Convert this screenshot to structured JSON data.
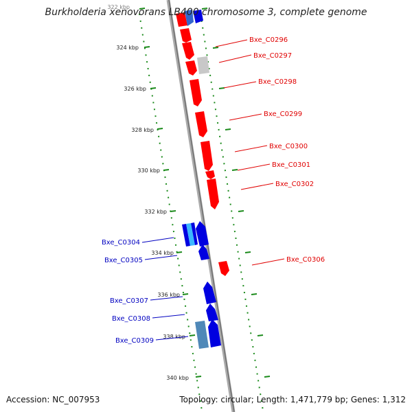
{
  "title": "Burkholderia xenovorans LB400 chromosome 3, complete genome",
  "footer": {
    "accession": "Accession: NC_007953",
    "summary": "Topology: circular; Length: 1,471,779 bp; Genes: 1,312"
  },
  "colors": {
    "forward_strand": "#ff0000",
    "reverse_strand": "#0000e0",
    "light_blue_gene": "#3bb8ff",
    "steel_gene": "#4f88b8",
    "gray_gene": "#c8c8c8",
    "ticks": "#1a8a1a",
    "backbone": "#909090"
  },
  "ticks": [
    "322 kbp",
    "324 kbp",
    "326 kbp",
    "328 kbp",
    "330 kbp",
    "332 kbp",
    "334 kbp",
    "336 kbp",
    "338 kbp",
    "340 kbp"
  ],
  "genes": [
    {
      "label": "Bxe_C0296",
      "strand": "forward",
      "start_kbp": 323.6,
      "end_kbp": 324.1
    },
    {
      "label": "Bxe_C0297",
      "strand": "forward",
      "start_kbp": 324.7,
      "end_kbp": 325.3
    },
    {
      "label": "Bxe_C0298",
      "strand": "forward",
      "start_kbp": 325.6,
      "end_kbp": 327.0
    },
    {
      "label": "Bxe_C0299",
      "strand": "forward",
      "start_kbp": 327.3,
      "end_kbp": 328.4
    },
    {
      "label": "Bxe_C0300",
      "strand": "forward",
      "start_kbp": 328.6,
      "end_kbp": 330.1
    },
    {
      "label": "Bxe_C0301",
      "strand": "forward",
      "start_kbp": 330.1,
      "end_kbp": 330.4
    },
    {
      "label": "Bxe_C0302",
      "strand": "forward",
      "start_kbp": 330.4,
      "end_kbp": 331.9
    },
    {
      "label": "Bxe_C0304",
      "strand": "reverse",
      "start_kbp": 332.6,
      "end_kbp": 333.6
    },
    {
      "label": "Bxe_C0305",
      "strand": "reverse",
      "start_kbp": 333.7,
      "end_kbp": 334.3
    },
    {
      "label": "Bxe_C0306",
      "strand": "forward",
      "start_kbp": 334.7,
      "end_kbp": 335.3
    },
    {
      "label": "Bxe_C0307",
      "strand": "reverse",
      "start_kbp": 335.6,
      "end_kbp": 336.6
    },
    {
      "label": "Bxe_C0308",
      "strand": "reverse",
      "start_kbp": 336.6,
      "end_kbp": 337.3
    },
    {
      "label": "Bxe_C0309",
      "strand": "reverse",
      "start_kbp": 337.3,
      "end_kbp": 338.6
    }
  ]
}
